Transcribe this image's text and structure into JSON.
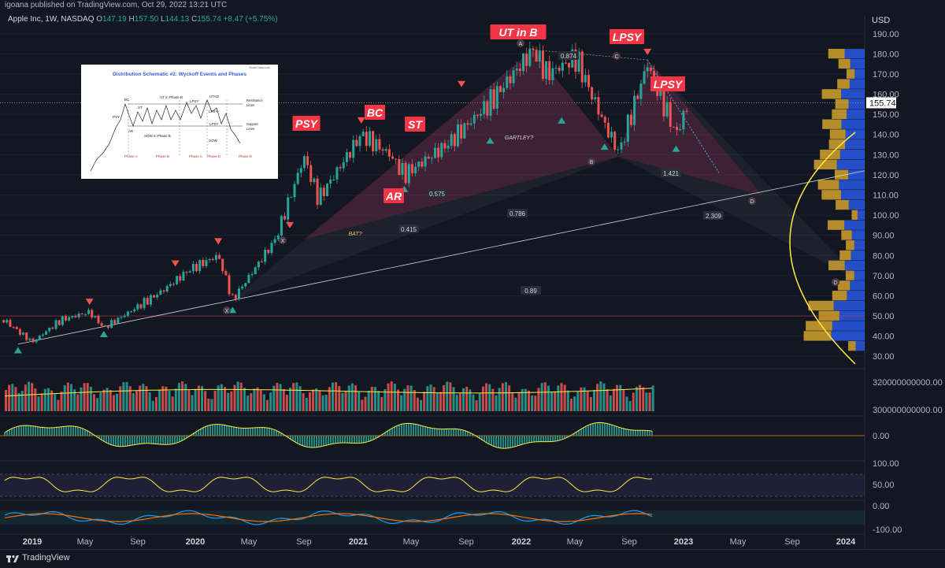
{
  "header": {
    "published": "igoana published on TradingView.com, Oct 29, 2022 13:21 UTC",
    "symbol": "Apple Inc, 1W, NASDAQ",
    "ohlc": {
      "o_label": "O",
      "o": "147.19",
      "h_label": "H",
      "h": "157.50",
      "l_label": "L",
      "l": "144.13",
      "c_label": "C",
      "c": "155.74",
      "change": "+8.47 (+5.75%)"
    }
  },
  "currency": "USD",
  "last_price": "155.74",
  "footer": {
    "brand": "TradingView"
  },
  "colors": {
    "bg": "#131722",
    "up": "#26a69a",
    "down": "#ef5350",
    "label_red": "#f23645",
    "yellow": "#ffeb3b",
    "teal": "#089981"
  },
  "chart_data": {
    "type": "line",
    "title": "",
    "x_ticks": [
      "2019",
      "May",
      "Sep",
      "2020",
      "May",
      "Sep",
      "2021",
      "May",
      "Sep",
      "2022",
      "May",
      "Sep",
      "2023",
      "May",
      "Sep",
      "2024"
    ],
    "y_ticks": [
      "190.00",
      "180.00",
      "170.00",
      "160.00",
      "150.00",
      "140.00",
      "130.00",
      "120.00",
      "110.00",
      "100.00",
      "90.00",
      "80.00",
      "70.00",
      "60.00",
      "50.00",
      "40.00",
      "30.00"
    ],
    "ylim": [
      25,
      195
    ],
    "price_series": {
      "x": [
        "2018-11",
        "2019-01",
        "2019-03",
        "2019-05",
        "2019-06",
        "2019-08",
        "2019-10",
        "2019-12",
        "2020-02",
        "2020-03",
        "2020-06",
        "2020-08",
        "2020-09",
        "2020-12",
        "2021-02",
        "2021-03",
        "2021-06",
        "2021-09",
        "2021-12",
        "2022-01",
        "2022-03",
        "2022-05",
        "2022-06",
        "2022-08",
        "2022-10",
        "2022-10-28"
      ],
      "y": [
        48,
        37,
        48,
        52,
        44,
        53,
        62,
        73,
        80,
        58,
        88,
        129,
        108,
        140,
        130,
        120,
        135,
        156,
        182,
        170,
        178,
        145,
        131,
        175,
        140,
        155.74
      ]
    },
    "wyckoff_labels": [
      "PSY",
      "BC",
      "AR",
      "ST",
      "UT in B",
      "LPSY",
      "LPSY"
    ],
    "harmonic_patterns": [
      "BAT?",
      "GARTLEY?"
    ],
    "point_labels": [
      "X",
      "A",
      "B",
      "C",
      "D",
      "X",
      "D"
    ],
    "fib_ratios": [
      "0.874",
      "0.575",
      "0.786",
      "0.415",
      "1.421",
      "2.309",
      "0.89"
    ],
    "volume_axis": [
      "320000000000.00",
      "300000000000.00"
    ],
    "oscillator_axis": [
      "0.00"
    ],
    "rsi_axis": [
      "100.00",
      "50.00"
    ],
    "momentum_axis": [
      "0.00",
      "-100.00"
    ]
  },
  "inset": {
    "title": "Distribution Schematic #2: Wyckoff Events and Phases",
    "source": "StockCharts.com",
    "events": [
      "BC",
      "ST",
      "PSY",
      "AR",
      "UT in Phase B",
      "LPSY",
      "LPSY",
      "UTAD",
      "SOW in Phase B",
      "SOW",
      "LPSY"
    ],
    "lines": [
      "Resistance",
      "Lines",
      "Support",
      "Lines"
    ],
    "phases": [
      "Phase A",
      "Phase B",
      "Phase C",
      "Phase D",
      "Phase E"
    ]
  }
}
